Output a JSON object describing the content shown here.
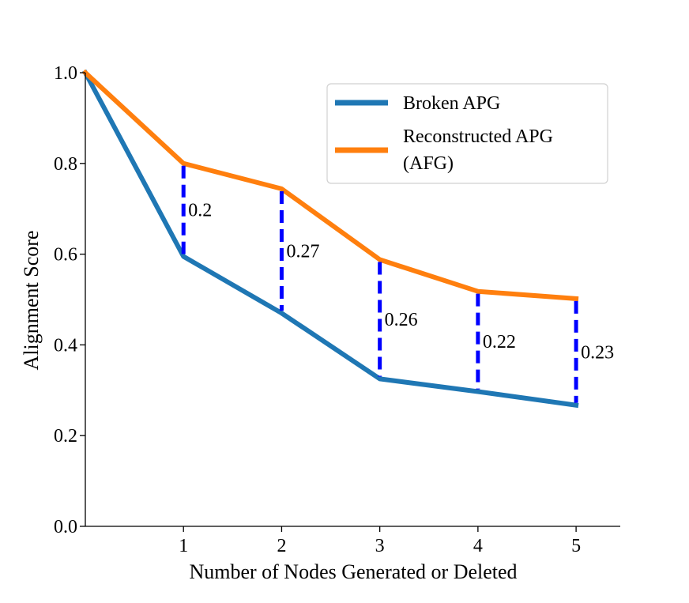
{
  "chart_data": {
    "type": "line",
    "title": "",
    "xlabel": "Number of Nodes Generated or Deleted",
    "ylabel": "Alignment Score",
    "x": [
      0,
      1,
      2,
      3,
      4,
      5
    ],
    "xticks": [
      1,
      2,
      3,
      4,
      5
    ],
    "xlim": [
      0,
      5.45
    ],
    "yticks": [
      "0.0",
      "0.2",
      "0.4",
      "0.6",
      "0.8",
      "1.0"
    ],
    "ylim": [
      0,
      1.0
    ],
    "grid": false,
    "legend_position": "top-right",
    "series": [
      {
        "name": "Broken APG",
        "color": "#1f77b4",
        "values": [
          1.0,
          0.595,
          0.47,
          0.325,
          0.297,
          0.267
        ]
      },
      {
        "name": "Reconstructed APG\n(AFG)",
        "name_lines": [
          "Reconstructed APG",
          " (AFG)"
        ],
        "color": "#ff7f0e",
        "values": [
          1.0,
          0.8,
          0.744,
          0.588,
          0.518,
          0.502
        ]
      }
    ],
    "gaps": [
      {
        "x": 1,
        "label": "0.2"
      },
      {
        "x": 2,
        "label": "0.27"
      },
      {
        "x": 3,
        "label": "0.26"
      },
      {
        "x": 4,
        "label": "0.22"
      },
      {
        "x": 5,
        "label": "0.23"
      }
    ],
    "gap_color": "#0000ff"
  }
}
